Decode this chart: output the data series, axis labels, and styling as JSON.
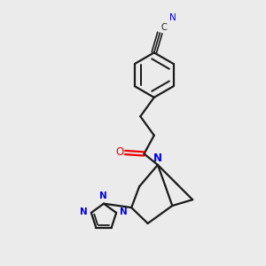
{
  "bg_color": "#ebebeb",
  "bond_color": "#1a1a1a",
  "N_color": "#0000ee",
  "O_color": "#ee0000",
  "C_color": "#1a1a1a",
  "label_N": "N",
  "label_O": "O",
  "label_C": "C",
  "figsize": [
    3.0,
    3.0
  ],
  "dpi": 100
}
